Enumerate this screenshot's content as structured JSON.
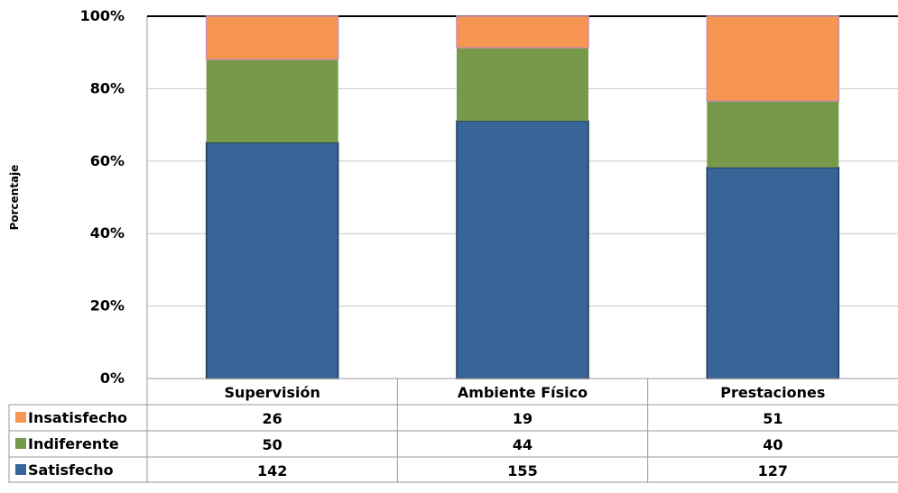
{
  "chart_data": {
    "type": "bar",
    "stacked": "percent",
    "ylabel": "Porcentaje",
    "ylim": [
      0,
      100
    ],
    "y_ticks": [
      "0%",
      "20%",
      "40%",
      "60%",
      "80%",
      "100%"
    ],
    "grid": true,
    "legend_position": "data table rows below chart",
    "categories": [
      "Supervisión",
      "Ambiente Físico",
      "Prestaciones"
    ],
    "series": [
      {
        "name": "Satisfecho",
        "values": [
          142,
          155,
          127
        ],
        "color": "#376597"
      },
      {
        "name": "Indiferente",
        "values": [
          50,
          44,
          40
        ],
        "color": "#76994a"
      },
      {
        "name": "Insatisfecho",
        "values": [
          26,
          19,
          51
        ],
        "color": "#f79553"
      }
    ],
    "table_row_order": [
      "Insatisfecho",
      "Indiferente",
      "Satisfecho"
    ]
  }
}
